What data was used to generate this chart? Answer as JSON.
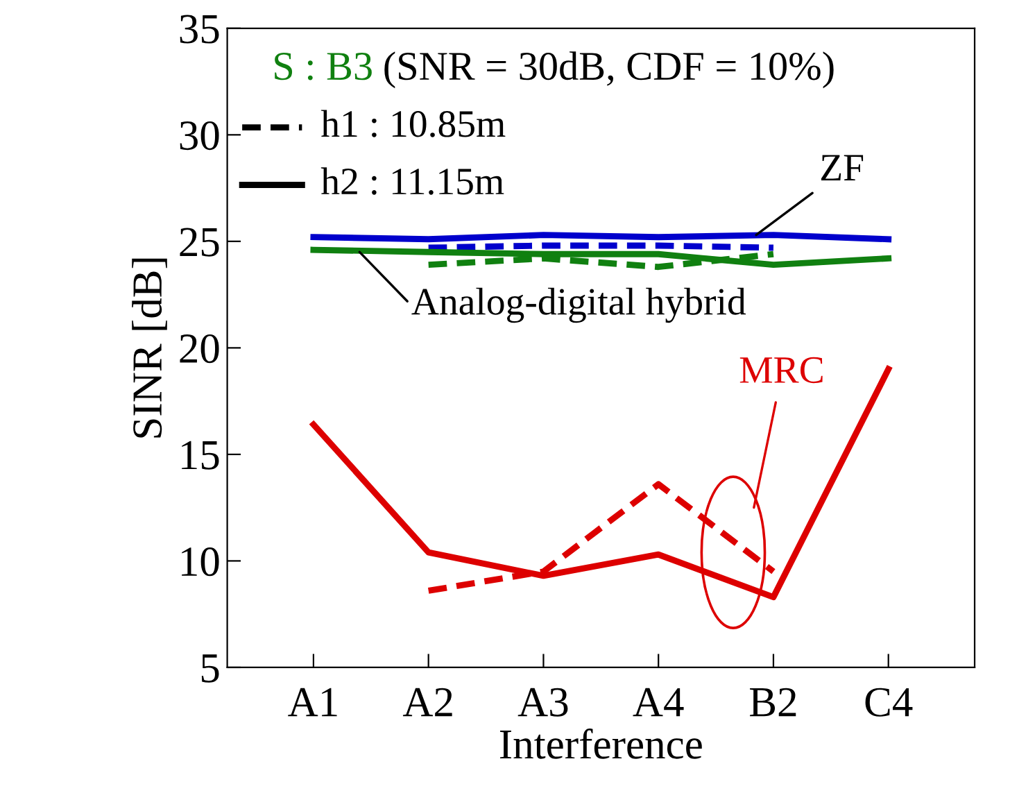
{
  "chart_data": {
    "type": "line",
    "title": "S : B3 (SNR = 30dB, CDF = 10%)",
    "xlabel": "Interference",
    "ylabel": "SINR [dB]",
    "categories": [
      "A1",
      "A2",
      "A3",
      "A4",
      "B2",
      "C4"
    ],
    "ylim": [
      5,
      35
    ],
    "yticks": [
      5,
      10,
      15,
      20,
      25,
      30,
      35
    ],
    "grid": false,
    "legend": false,
    "marker": "none",
    "series": [
      {
        "color": "#0000cc",
        "line_style": "solid",
        "values": [
          25.2,
          25.1,
          25.3,
          25.2,
          25.3,
          25.1
        ]
      },
      {
        "color": "#0000cc",
        "line_style": "dashed",
        "values": [
          null,
          24.7,
          24.8,
          24.8,
          24.7,
          null
        ]
      },
      {
        "color": "#108010",
        "line_style": "solid",
        "values": [
          24.6,
          24.5,
          24.4,
          24.4,
          23.9,
          24.2
        ]
      },
      {
        "color": "#108010",
        "line_style": "dashed",
        "values": [
          null,
          23.9,
          24.2,
          23.8,
          24.4,
          null
        ]
      },
      {
        "color": "#dd0000",
        "line_style": "solid",
        "values": [
          16.4,
          10.4,
          9.3,
          10.3,
          8.3,
          19.0
        ]
      },
      {
        "color": "#dd0000",
        "line_style": "dashed",
        "values": [
          null,
          8.6,
          9.5,
          13.6,
          9.5,
          null
        ]
      }
    ],
    "annotations": [
      "h1 : 10.85m",
      "h2 : 11.15m",
      {
        "text": "ZF",
        "y": 25.3
      },
      {
        "text": "Analog-digital hybrid",
        "y": 24.5
      },
      "MRC"
    ]
  }
}
